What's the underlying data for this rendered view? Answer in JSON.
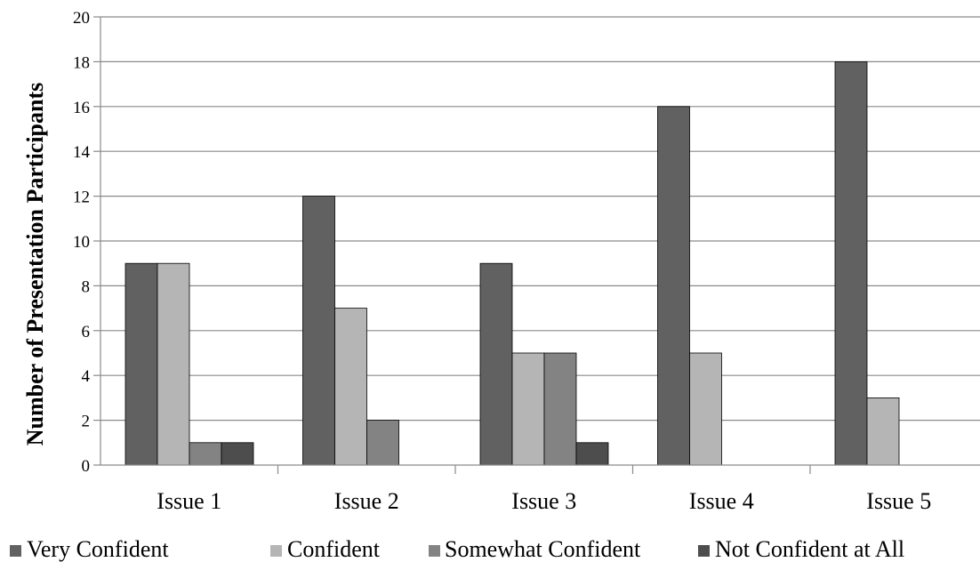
{
  "chart_data": {
    "type": "bar",
    "title": "",
    "xlabel": "",
    "ylabel": "Number of Presentation Participants",
    "ylim": [
      0,
      20
    ],
    "yticks": [
      0,
      2,
      4,
      6,
      8,
      10,
      12,
      14,
      16,
      18,
      20
    ],
    "grid": true,
    "legend_position": "bottom",
    "categories": [
      "Issue 1",
      "Issue 2",
      "Issue 3",
      "Issue 4",
      "Issue 5"
    ],
    "series": [
      {
        "name": "Very Confident",
        "color": "#616161",
        "values": [
          9,
          12,
          9,
          16,
          18
        ]
      },
      {
        "name": "Confident",
        "color": "#b5b5b5",
        "values": [
          9,
          7,
          5,
          5,
          3
        ]
      },
      {
        "name": "Somewhat Confident",
        "color": "#838383",
        "values": [
          1,
          2,
          5,
          0,
          0
        ]
      },
      {
        "name": "Not Confident at All",
        "color": "#4d4d4d",
        "values": [
          1,
          0,
          1,
          0,
          0
        ]
      }
    ]
  }
}
